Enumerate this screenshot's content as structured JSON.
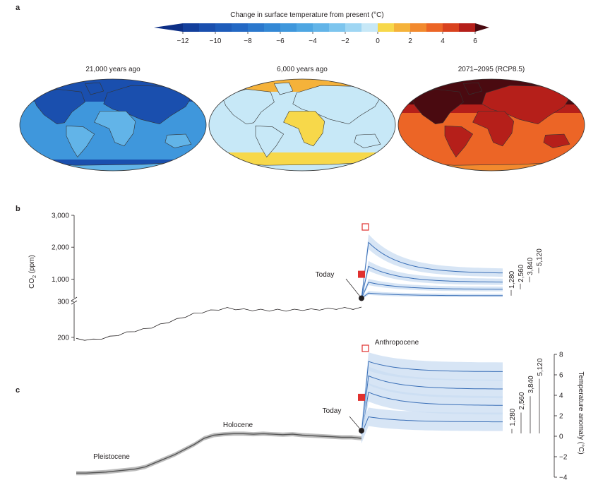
{
  "panels": {
    "a": "a",
    "b": "b",
    "c": "c"
  },
  "colorbar": {
    "title": "Change in surface temperature from present (°C)",
    "ticks": [
      "−12",
      "−10",
      "−8",
      "−6",
      "−4",
      "−2",
      "0",
      "2",
      "4",
      "6"
    ],
    "bins": [
      {
        "from": -13,
        "to": -12,
        "color": "#0d2f86"
      },
      {
        "from": -12,
        "to": -11,
        "color": "#133f9c"
      },
      {
        "from": -11,
        "to": -10,
        "color": "#1a4fae"
      },
      {
        "from": -10,
        "to": -9,
        "color": "#1e5cba"
      },
      {
        "from": -9,
        "to": -8,
        "color": "#2368c4"
      },
      {
        "from": -8,
        "to": -7,
        "color": "#2b78cd"
      },
      {
        "from": -7,
        "to": -6,
        "color": "#3388d5"
      },
      {
        "from": -6,
        "to": -5,
        "color": "#3f97dc"
      },
      {
        "from": -5,
        "to": -4,
        "color": "#4ea6e2"
      },
      {
        "from": -4,
        "to": -3,
        "color": "#62b4e8"
      },
      {
        "from": -3,
        "to": -2,
        "color": "#7dc5ee"
      },
      {
        "from": -2,
        "to": -1,
        "color": "#9fd6f3"
      },
      {
        "from": -1,
        "to": 0,
        "color": "#c7e8f7"
      },
      {
        "from": 0,
        "to": 1,
        "color": "#f7d84a"
      },
      {
        "from": 1,
        "to": 2,
        "color": "#f5b23a"
      },
      {
        "from": 2,
        "to": 3,
        "color": "#f28a2e"
      },
      {
        "from": 3,
        "to": 4,
        "color": "#ec6526"
      },
      {
        "from": 4,
        "to": 5,
        "color": "#d9421e"
      },
      {
        "from": 5,
        "to": 6,
        "color": "#b51f1a"
      },
      {
        "from": 6,
        "to": 7,
        "color": "#4a0a10"
      }
    ]
  },
  "maps": [
    {
      "title": "21,000 years ago",
      "base": "#3f97dc",
      "dark": "#1a4fae",
      "light": "#62b4e8"
    },
    {
      "title": "6,000 years ago",
      "base": "#c7e8f7",
      "dark": "#f7d84a",
      "light": "#f5b23a"
    },
    {
      "title": "2071–2095 (RCP8.5)",
      "base": "#ec6526",
      "dark": "#b51f1a",
      "light": "#f28a2e"
    }
  ],
  "chart_data": [
    {
      "panel": "b",
      "type": "line",
      "ylabel": "CO2 (ppm)",
      "ylabel_main": "CO",
      "ylabel_sub": "2",
      "ylabel_unit": " (ppm)",
      "y_ticks_lower": [
        "200",
        "300"
      ],
      "y_ticks_upper": [
        "1,000",
        "2,000",
        "3,000"
      ],
      "y_axis_break": true,
      "today_label": "Today",
      "history_ppm": [
        195,
        194,
        193,
        197,
        201,
        207,
        213,
        218,
        222,
        228,
        235,
        243,
        250,
        258,
        265,
        270,
        274,
        278,
        281,
        279,
        277,
        276,
        276,
        275,
        276,
        275,
        276,
        277,
        277,
        278,
        279,
        280,
        281,
        280,
        282
      ],
      "today_ppm": 400,
      "filled_marker_ppm": 1150,
      "open_marker_ppm": 2600,
      "scenarios": [
        {
          "name": "1,280",
          "peak_ppm": 560,
          "end_ppm": 480
        },
        {
          "name": "2,560",
          "peak_ppm": 900,
          "end_ppm": 680
        },
        {
          "name": "3,840",
          "peak_ppm": 1400,
          "end_ppm": 900
        },
        {
          "name": "5,120",
          "peak_ppm": 2150,
          "end_ppm": 1180
        }
      ],
      "grid": false
    },
    {
      "panel": "c",
      "type": "line",
      "ylabel": "Temperature anomaly (°C)",
      "y_ticks": [
        "−4",
        "−2",
        "0",
        "2",
        "4",
        "6",
        "8"
      ],
      "ylim": [
        -4,
        8
      ],
      "annotations": [
        "Pleistocene",
        "Holocene",
        "Anthropocene",
        "Today"
      ],
      "history_anomaly": [
        -3.6,
        -3.6,
        -3.55,
        -3.5,
        -3.4,
        -3.3,
        -3.2,
        -3.0,
        -2.6,
        -2.2,
        -1.8,
        -1.3,
        -0.8,
        -0.2,
        0.1,
        0.2,
        0.25,
        0.25,
        0.2,
        0.25,
        0.2,
        0.15,
        0.2,
        0.1,
        0.05,
        0.0,
        -0.05,
        -0.1,
        -0.1,
        -0.2
      ],
      "today_anomaly": 0.2,
      "filled_marker_anomaly": 3.8,
      "open_marker_anomaly": 8.0,
      "scenarios": [
        {
          "name": "1,280",
          "peak": 1.9,
          "end": 1.4
        },
        {
          "name": "2,560",
          "peak": 4.3,
          "end": 3.0
        },
        {
          "name": "3,840",
          "peak": 5.9,
          "end": 4.6
        },
        {
          "name": "5,120",
          "peak": 7.3,
          "end": 6.3
        }
      ],
      "grid": false
    }
  ],
  "colors": {
    "history_line": "#231f20",
    "scenario_line": "#3a6fb7",
    "scenario_band": "#c9dcf1",
    "history_band": "#bdbdbd",
    "marker_red": "#e0312f",
    "map_outline": "#333333"
  }
}
